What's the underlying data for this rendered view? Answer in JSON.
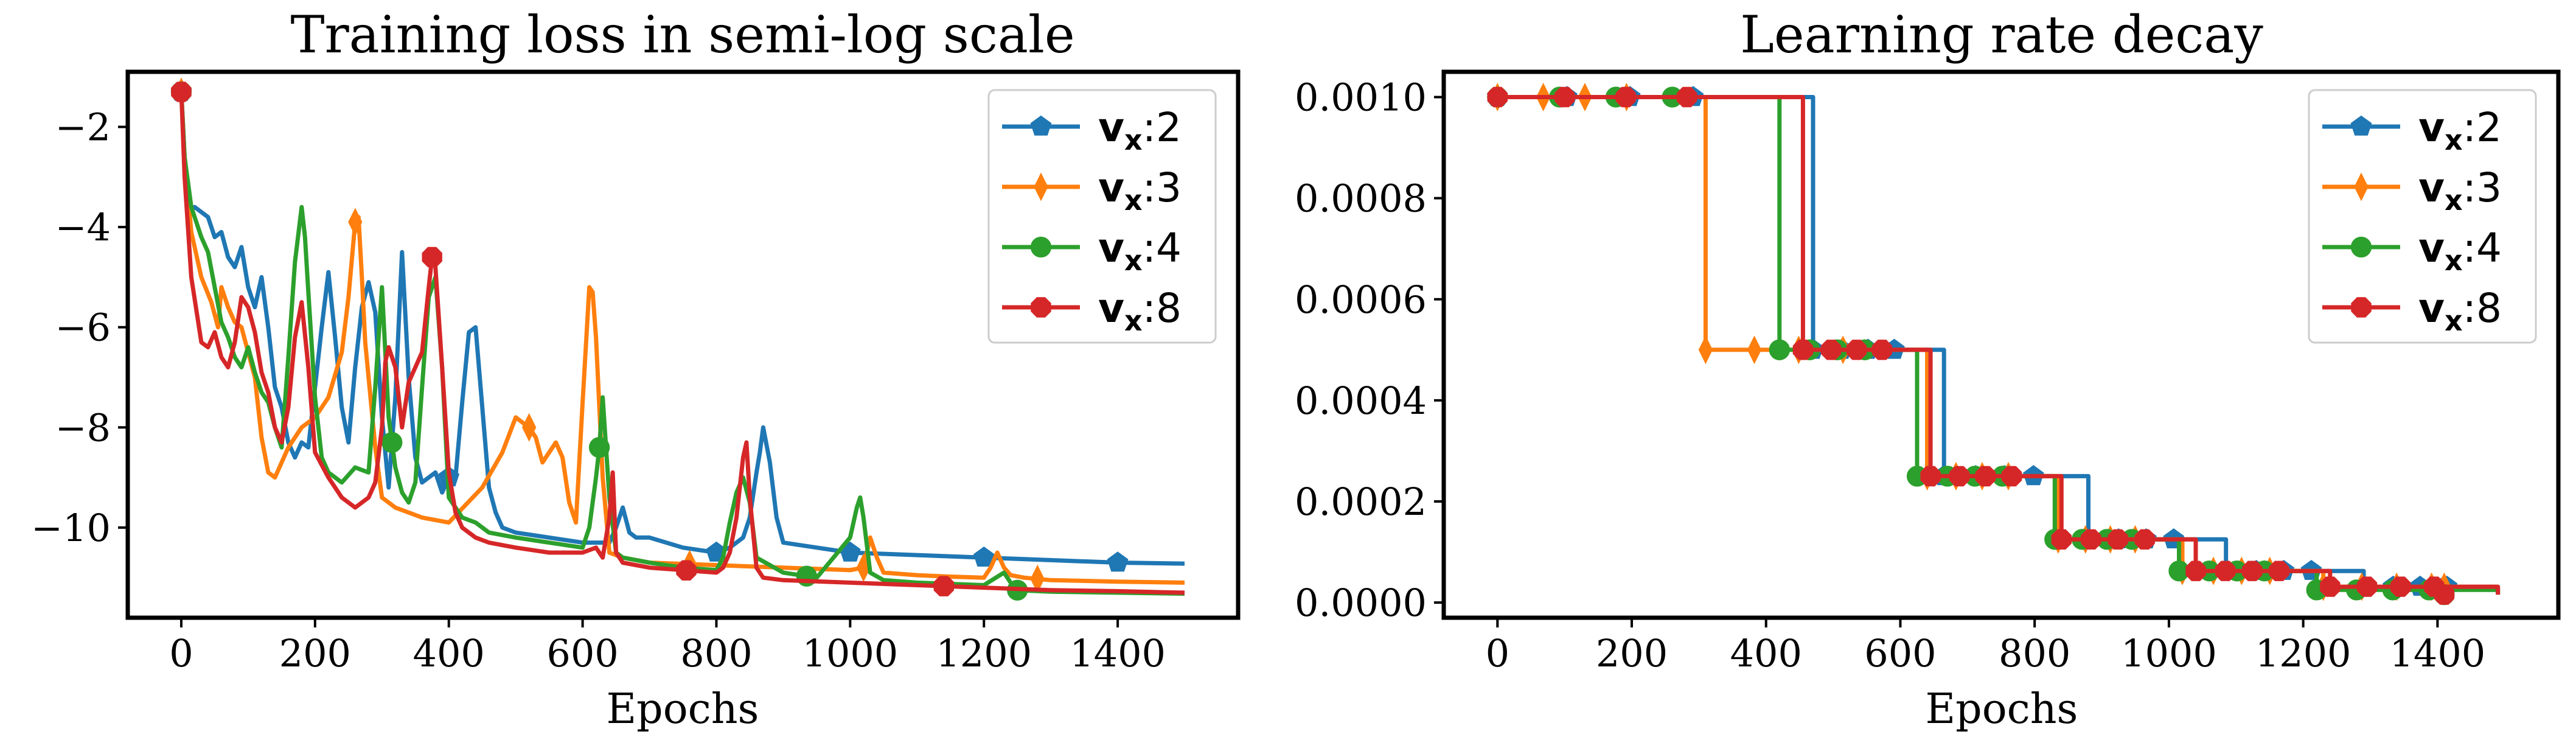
{
  "chart_data": [
    {
      "type": "line",
      "title": "Training loss in semi-log scale",
      "xlabel": "Epochs",
      "ylabel": "",
      "xlim": [
        -80,
        1580
      ],
      "ylim": [
        -11.8,
        -0.9
      ],
      "xticks": [
        0,
        200,
        400,
        600,
        800,
        1000,
        1200,
        1400
      ],
      "yticks": [
        -2,
        -4,
        -6,
        -8,
        -10
      ],
      "grid": false,
      "legend": "top-right",
      "legend_symbol": "v",
      "legend_subscript": "x",
      "series": [
        {
          "name": ":2",
          "color": "#1f77b4",
          "marker": "pentagon",
          "x": [
            0,
            5,
            12,
            20,
            30,
            40,
            50,
            60,
            70,
            80,
            90,
            100,
            110,
            120,
            130,
            140,
            150,
            160,
            170,
            180,
            190,
            200,
            210,
            220,
            230,
            240,
            250,
            260,
            270,
            280,
            290,
            300,
            310,
            320,
            330,
            340,
            350,
            360,
            370,
            380,
            390,
            400,
            410,
            420,
            430,
            440,
            450,
            460,
            470,
            480,
            500,
            550,
            600,
            640,
            650,
            660,
            670,
            680,
            700,
            750,
            800,
            820,
            840,
            850,
            860,
            865,
            870,
            880,
            890,
            900,
            950,
            1000,
            1100,
            1200,
            1300,
            1400,
            1500
          ],
          "values": [
            -1.3,
            -2.6,
            -3.7,
            -3.6,
            -3.7,
            -3.8,
            -4.2,
            -4.1,
            -4.6,
            -4.8,
            -4.4,
            -5.2,
            -5.6,
            -5.0,
            -6.0,
            -7.2,
            -7.6,
            -8.3,
            -8.6,
            -8.3,
            -8.4,
            -7.2,
            -6.0,
            -4.9,
            -6.2,
            -7.6,
            -8.3,
            -6.8,
            -5.6,
            -5.1,
            -5.7,
            -7.8,
            -9.2,
            -7.4,
            -4.5,
            -7.0,
            -8.6,
            -9.1,
            -9.0,
            -8.9,
            -9.3,
            -9.0,
            -9.0,
            -7.5,
            -6.1,
            -6.0,
            -7.6,
            -9.2,
            -9.7,
            -10.0,
            -10.1,
            -10.2,
            -10.3,
            -10.3,
            -10.0,
            -9.6,
            -10.1,
            -10.2,
            -10.2,
            -10.4,
            -10.5,
            -10.4,
            -10.2,
            -9.8,
            -8.9,
            -8.5,
            -8.0,
            -8.7,
            -9.8,
            -10.3,
            -10.4,
            -10.5,
            -10.55,
            -10.6,
            -10.65,
            -10.7,
            -10.72
          ]
        },
        {
          "name": ":3",
          "color": "#ff7f0e",
          "marker": "thin_diamond",
          "x": [
            0,
            5,
            15,
            30,
            45,
            55,
            60,
            70,
            80,
            90,
            100,
            110,
            120,
            130,
            140,
            160,
            180,
            200,
            220,
            240,
            250,
            260,
            265,
            270,
            275,
            280,
            290,
            300,
            320,
            340,
            360,
            400,
            450,
            480,
            500,
            510,
            520,
            530,
            540,
            550,
            560,
            570,
            580,
            590,
            600,
            610,
            615,
            620,
            630,
            640,
            660,
            700,
            800,
            900,
            1000,
            1020,
            1030,
            1040,
            1050,
            1100,
            1150,
            1200,
            1210,
            1220,
            1230,
            1240,
            1260,
            1300,
            1400,
            1500
          ],
          "values": [
            -1.3,
            -2.6,
            -4.1,
            -5.0,
            -5.5,
            -6.0,
            -5.2,
            -5.6,
            -5.9,
            -6.0,
            -6.5,
            -7.0,
            -8.2,
            -8.9,
            -9.0,
            -8.4,
            -8.0,
            -7.8,
            -7.4,
            -6.5,
            -5.4,
            -3.9,
            -3.8,
            -5.0,
            -6.3,
            -7.0,
            -8.4,
            -9.4,
            -9.6,
            -9.7,
            -9.8,
            -9.9,
            -9.2,
            -8.5,
            -7.8,
            -7.9,
            -8.0,
            -8.2,
            -8.7,
            -8.5,
            -8.3,
            -8.6,
            -9.5,
            -9.9,
            -7.5,
            -5.2,
            -5.3,
            -6.2,
            -9.0,
            -10.5,
            -10.6,
            -10.7,
            -10.75,
            -10.8,
            -10.85,
            -10.8,
            -10.2,
            -10.6,
            -10.9,
            -10.95,
            -10.98,
            -11.0,
            -10.8,
            -10.5,
            -10.8,
            -10.95,
            -11.0,
            -11.05,
            -11.08,
            -11.1
          ]
        },
        {
          "name": ":4",
          "color": "#2ca02c",
          "marker": "circle",
          "x": [
            0,
            5,
            15,
            30,
            40,
            50,
            60,
            70,
            80,
            90,
            100,
            110,
            120,
            130,
            140,
            150,
            160,
            170,
            180,
            185,
            190,
            200,
            210,
            220,
            240,
            260,
            280,
            290,
            300,
            310,
            320,
            330,
            340,
            350,
            360,
            370,
            380,
            390,
            400,
            410,
            420,
            440,
            460,
            500,
            550,
            600,
            610,
            620,
            625,
            630,
            640,
            650,
            660,
            700,
            750,
            800,
            810,
            820,
            830,
            840,
            850,
            860,
            900,
            950,
            1000,
            1010,
            1015,
            1020,
            1030,
            1050,
            1100,
            1200,
            1230,
            1240,
            1250,
            1300,
            1400,
            1500
          ],
          "values": [
            -1.3,
            -2.6,
            -3.6,
            -4.2,
            -4.5,
            -5.2,
            -5.9,
            -6.2,
            -6.6,
            -6.8,
            -6.4,
            -6.9,
            -7.3,
            -7.5,
            -8.0,
            -8.4,
            -6.6,
            -4.7,
            -3.6,
            -4.2,
            -5.3,
            -7.4,
            -8.6,
            -8.9,
            -9.1,
            -8.8,
            -8.9,
            -7.2,
            -5.2,
            -7.8,
            -8.8,
            -9.3,
            -9.5,
            -9.1,
            -7.2,
            -5.4,
            -5.0,
            -6.8,
            -9.4,
            -9.6,
            -9.8,
            -9.9,
            -10.1,
            -10.2,
            -10.3,
            -10.4,
            -10.0,
            -9.0,
            -8.4,
            -7.4,
            -9.4,
            -10.5,
            -10.6,
            -10.7,
            -10.8,
            -10.85,
            -10.6,
            -9.9,
            -9.3,
            -9.0,
            -9.5,
            -10.6,
            -10.9,
            -11.0,
            -10.2,
            -9.6,
            -9.4,
            -9.8,
            -10.9,
            -11.05,
            -11.1,
            -11.15,
            -10.9,
            -11.1,
            -11.25,
            -11.28,
            -11.3,
            -11.32
          ]
        },
        {
          "name": ":8",
          "color": "#d62728",
          "marker": "octagon",
          "x": [
            0,
            5,
            15,
            30,
            40,
            50,
            60,
            70,
            80,
            90,
            100,
            110,
            120,
            130,
            140,
            150,
            160,
            170,
            180,
            190,
            200,
            220,
            240,
            260,
            280,
            290,
            300,
            305,
            310,
            320,
            330,
            340,
            350,
            360,
            370,
            375,
            380,
            390,
            400,
            410,
            420,
            440,
            460,
            500,
            550,
            600,
            620,
            630,
            640,
            645,
            650,
            660,
            700,
            750,
            800,
            810,
            820,
            830,
            840,
            845,
            850,
            860,
            870,
            900,
            1000,
            1100,
            1200,
            1300,
            1400,
            1500
          ],
          "values": [
            -1.3,
            -3.0,
            -5.0,
            -6.3,
            -6.4,
            -6.1,
            -6.6,
            -6.8,
            -6.3,
            -5.4,
            -5.6,
            -6.1,
            -6.9,
            -7.3,
            -8.0,
            -8.3,
            -7.6,
            -6.2,
            -5.5,
            -6.8,
            -8.5,
            -9.0,
            -9.4,
            -9.6,
            -9.4,
            -9.1,
            -8.0,
            -6.7,
            -6.4,
            -6.8,
            -8.0,
            -7.1,
            -6.8,
            -6.5,
            -5.2,
            -4.6,
            -4.8,
            -6.8,
            -8.9,
            -9.7,
            -10.0,
            -10.2,
            -10.3,
            -10.4,
            -10.5,
            -10.5,
            -10.4,
            -10.6,
            -9.8,
            -8.9,
            -10.5,
            -10.7,
            -10.8,
            -10.85,
            -10.9,
            -10.8,
            -10.5,
            -9.8,
            -8.6,
            -8.3,
            -9.4,
            -10.8,
            -11.0,
            -11.05,
            -11.1,
            -11.15,
            -11.2,
            -11.25,
            -11.27,
            -11.3
          ]
        }
      ]
    },
    {
      "type": "line",
      "title": "Learning rate decay",
      "xlabel": "Epochs",
      "ylabel": "",
      "xlim": [
        -80,
        1580
      ],
      "ylim": [
        -3e-05,
        0.00105
      ],
      "xticks": [
        0,
        200,
        400,
        600,
        800,
        1000,
        1200,
        1400
      ],
      "yticks": [
        0.001,
        0.0008,
        0.0006,
        0.0004,
        0.0002,
        0.0
      ],
      "ytick_labels": [
        "0.0010",
        "0.0008",
        "0.0006",
        "0.0004",
        "0.0002",
        "0.0000"
      ],
      "grid": false,
      "legend": "top-right",
      "legend_symbol": "v",
      "legend_subscript": "x",
      "series": [
        {
          "name": ":2",
          "color": "#1f77b4",
          "marker": "pentagon",
          "step": "post",
          "x": [
            0,
            470,
            665,
            880,
            1085,
            1290,
            1490
          ],
          "values": [
            0.001,
            0.0005,
            0.00025,
            0.000125,
            6.25e-05,
            3.125e-05,
            3.125e-05
          ]
        },
        {
          "name": ":3",
          "color": "#ff7f0e",
          "marker": "thin_diamond",
          "step": "post",
          "x": [
            0,
            310,
            640,
            835,
            1020,
            1230,
            1490
          ],
          "values": [
            0.001,
            0.0005,
            0.00025,
            0.000125,
            6.25e-05,
            3.125e-05,
            3.125e-05
          ]
        },
        {
          "name": ":4",
          "color": "#2ca02c",
          "marker": "circle",
          "step": "post",
          "x": [
            0,
            420,
            625,
            830,
            1015,
            1220,
            1490
          ],
          "values": [
            0.001,
            0.0005,
            0.00025,
            0.000125,
            6.25e-05,
            2.5e-05,
            1.56e-05
          ]
        },
        {
          "name": ":8",
          "color": "#d62728",
          "marker": "octagon",
          "step": "post",
          "x": [
            0,
            455,
            645,
            840,
            1040,
            1240,
            1490
          ],
          "values": [
            0.001,
            0.0005,
            0.00025,
            0.000125,
            6.25e-05,
            3.125e-05,
            1.56e-05
          ]
        }
      ]
    }
  ]
}
